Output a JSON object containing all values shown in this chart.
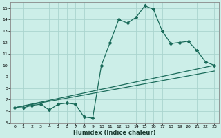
{
  "xlabel": "Humidex (Indice chaleur)",
  "ylabel": "",
  "background_color": "#cceee8",
  "grid_color": "#aad4ce",
  "line_color": "#1a6b5a",
  "xlim": [
    -0.5,
    23.5
  ],
  "ylim": [
    5,
    15.5
  ],
  "xticks": [
    0,
    1,
    2,
    3,
    4,
    5,
    6,
    7,
    8,
    9,
    10,
    11,
    12,
    13,
    14,
    15,
    16,
    17,
    18,
    19,
    20,
    21,
    22,
    23
  ],
  "yticks": [
    5,
    6,
    7,
    8,
    9,
    10,
    11,
    12,
    13,
    14,
    15
  ],
  "line1_x": [
    0,
    1,
    2,
    3,
    4,
    5,
    6,
    7,
    8,
    9,
    10,
    11,
    12,
    13,
    14,
    15,
    16,
    17,
    18,
    19,
    20,
    21,
    22,
    23
  ],
  "line1_y": [
    6.3,
    6.3,
    6.5,
    6.6,
    6.1,
    6.6,
    6.7,
    6.6,
    5.5,
    5.4,
    10.0,
    12.0,
    14.0,
    13.7,
    14.2,
    15.2,
    14.9,
    13.0,
    11.9,
    12.0,
    12.1,
    11.3,
    10.3,
    10.0
  ],
  "line2_x": [
    0,
    23
  ],
  "line2_y": [
    6.3,
    10.0
  ],
  "line3_x": [
    0,
    23
  ],
  "line3_y": [
    6.3,
    9.5
  ],
  "marker": "D",
  "markersize": 2.0,
  "linewidth": 0.9,
  "tick_fontsize": 4.5,
  "xlabel_fontsize": 6.0
}
